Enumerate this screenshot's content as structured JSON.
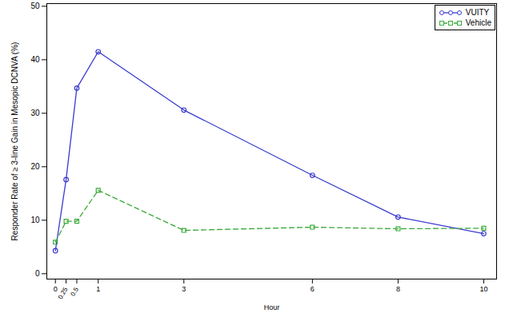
{
  "chart_data": {
    "type": "line",
    "x_label": "Hour",
    "y_label": "Responder Rate of ≥ 3-line Gain in Mesopic DCNVA (%)",
    "x": [
      0,
      0.25,
      0.5,
      1,
      3,
      6,
      8,
      10
    ],
    "series": [
      {
        "name": "VUITY",
        "color": "#3a3ad0",
        "marker": "circle",
        "line_style": "solid",
        "values": [
          4.3,
          17.6,
          34.7,
          41.5,
          30.6,
          18.4,
          10.6,
          7.5
        ]
      },
      {
        "name": "Vehicle",
        "color": "#3aaa3a",
        "marker": "square",
        "line_style": "dashed",
        "values": [
          5.9,
          9.8,
          9.8,
          15.6,
          8.1,
          8.7,
          8.4,
          8.5
        ]
      }
    ],
    "xlim": [
      -0.2,
      10.3
    ],
    "ylim": [
      -1,
      50.5
    ],
    "xticks": [
      0,
      0.25,
      0.5,
      1,
      3,
      6,
      8,
      10
    ],
    "yticks": [
      0,
      10,
      20,
      30,
      40,
      50
    ],
    "grid": false,
    "legend": "top-right"
  }
}
